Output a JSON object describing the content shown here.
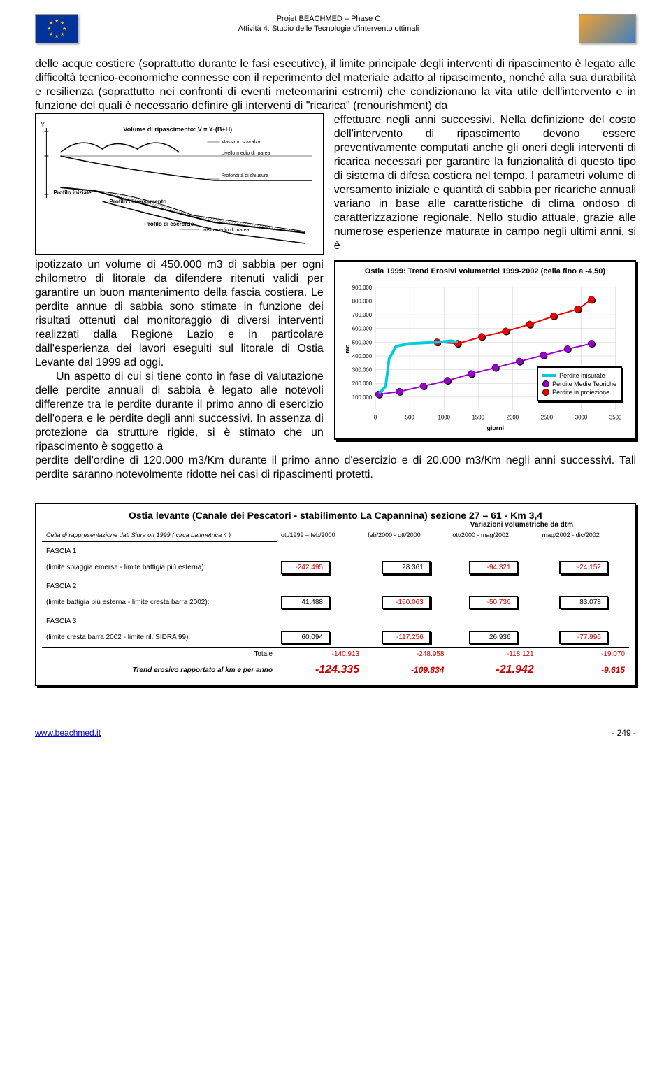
{
  "header": {
    "line1": "Projet BEACHMED – Phase C",
    "line2": "Attività 4: Studio delle Tecnologie d'intervento ottimali"
  },
  "body": {
    "para_top": "delle acque costiere (soprattutto durante le fasi esecutive), il limite principale degli interventi di ripascimento è legato alle difficoltà tecnico-economiche connesse con il reperimento del materiale adatto al ripascimento, nonché alla sua durabilità e resilienza (soprattutto nei confronti di eventi meteomarini estremi) che condizionano la vita utile dell'intervento e in funzione dei quali è necessario definire gli interventi di \"ricarica\" (renourishment) da",
    "para_right": "effettuare negli anni successivi. Nella definizione del costo dell'intervento di ripascimento devono essere preventivamente computati anche gli oneri degli interventi di ricarica necessari per garantire la funzionalità di questo tipo di sistema di difesa costiera nel tempo. I parametri volume di versamento iniziale e quantità di sabbia per ricariche annuali variano in base alle caratteristiche di clima ondoso di caratterizzazione regionale. Nello studio attuale, grazie alle numerose esperienze maturate in campo negli ultimi anni, si è",
    "para_left": "ipotizzato un volume di 450.000 m3 di sabbia per ogni chilometro di litorale da difendere ritenuti validi per garantire un buon mantenimento della fascia costiera. Le perdite annue di sabbia sono stimate in funzione dei risultati ottenuti dal monitoraggio di diversi interventi realizzati dalla Regione Lazio e in particolare dall'esperienza dei lavori eseguiti sul litorale di Ostia Levante dal 1999 ad oggi.",
    "para_left2": "Un aspetto di cui si tiene conto in fase di valutazione delle perdite annuali di sabbia è legato alle notevoli differenze tra le perdite durante il primo anno di esercizio dell'opera e le perdite degli anni successivi. In assenza di protezione da strutture rigide, si è stimato che un ripascimento è soggetto a",
    "para_bottom": "perdite dell'ordine di 120.000 m3/Km durante il primo anno d'esercizio e di 20.000 m3/Km negli anni successivi. Tali perdite saranno notevolmente ridotte nei casi di ripascimenti protetti."
  },
  "diagram_labels": {
    "formula": "Volume di ripascimento: V = Y·(B+H)",
    "max_sov": "Massimo sovralzo",
    "liv_marea": "Livello medio di marea",
    "prof_chiusura": "Profondità di chiusura",
    "profilo_iniziale": "Profilo iniziale",
    "profilo_versamento": "Profilo di versamento",
    "profilo_esercizio": "Profilo di esercizio"
  },
  "chart": {
    "title": "Ostia 1999: Trend Erosivi volumetrici 1999-2002 (cella fino a -4,50)",
    "ylabel": "mc",
    "xlabel": "giorni",
    "xlim": [
      0,
      3500
    ],
    "xtick_step": 500,
    "ylim": [
      0,
      900000
    ],
    "ytick_step": 100000,
    "yticks": [
      "100.000",
      "200.000",
      "300.000",
      "400.000",
      "500.000",
      "600.000",
      "700.000",
      "800.000",
      "900.000"
    ],
    "series": {
      "misurate": {
        "label": "Perdite misurate",
        "color": "#00ccdd",
        "line_width": 4,
        "points": [
          [
            50,
            130000
          ],
          [
            100,
            150000
          ],
          [
            150,
            180000
          ],
          [
            200,
            380000
          ],
          [
            300,
            470000
          ],
          [
            500,
            490000
          ],
          [
            900,
            500000
          ],
          [
            1100,
            510000
          ],
          [
            1200,
            500000
          ]
        ]
      },
      "teoriche": {
        "label": "Perdite Medie Teoriche",
        "color": "#9900cc",
        "marker": "circle",
        "line_width": 2,
        "points": [
          [
            50,
            120000
          ],
          [
            350,
            140000
          ],
          [
            700,
            180000
          ],
          [
            1050,
            220000
          ],
          [
            1400,
            270000
          ],
          [
            1750,
            315000
          ],
          [
            2100,
            360000
          ],
          [
            2450,
            405000
          ],
          [
            2800,
            450000
          ],
          [
            3150,
            490000
          ]
        ]
      },
      "proiezione": {
        "label": "Perdite in proiezione",
        "color": "#ee0000",
        "marker": "circle",
        "line_width": 2,
        "points": [
          [
            900,
            500000
          ],
          [
            1200,
            490000
          ],
          [
            1550,
            540000
          ],
          [
            1900,
            580000
          ],
          [
            2250,
            630000
          ],
          [
            2600,
            690000
          ],
          [
            2950,
            740000
          ],
          [
            3150,
            810000
          ]
        ]
      }
    },
    "legend_position": "bottom-right"
  },
  "table": {
    "title": "Ostia levante (Canale dei Pescatori - stabilimento La Capannina) sezione 27 – 61 - Km 3,4",
    "subtitle": "Variazioni volumetriche da dtm",
    "cella_label": "Cella di rappresentazione dati Sidra ott 1999 ( circa batimetrica 4 )",
    "col_headers": [
      "ott/1999 – feb/2000",
      "feb/2000 - ott/2000",
      "ott/2000 - mag/2002",
      "mag/2002 - dic/2002"
    ],
    "fascia1": {
      "label": "FASCIA 1",
      "desc": "(limite spiaggia emersa - limite battigia più esterna):",
      "vals": [
        "-242.495",
        "28.361",
        "-94.321",
        "-24.152"
      ],
      "neg": [
        true,
        false,
        true,
        true
      ]
    },
    "fascia2": {
      "label": "FASCIA 2",
      "desc": "(limite battigia più esterna - limite cresta barra 2002):",
      "vals": [
        "41.488",
        "-160.063",
        "-50.736",
        "83.078"
      ],
      "neg": [
        false,
        true,
        true,
        false
      ]
    },
    "fascia3": {
      "label": "FASCIA 3",
      "desc": "(limite cresta barra 2002 - limite ril. SIDRA 99):",
      "vals": [
        "60.094",
        "-117.256",
        "26.936",
        "-77.996"
      ],
      "neg": [
        false,
        true,
        false,
        true
      ]
    },
    "totale": {
      "label": "Totale",
      "vals": [
        "-140.913",
        "-248.958",
        "-118.121",
        "-19.070"
      ]
    },
    "trend": {
      "label": "Trend erosivo rapportato al km e per anno",
      "vals": [
        "-124.335",
        "-109.834",
        "-21.942",
        "-9.615"
      ],
      "big": [
        true,
        false,
        true,
        false
      ]
    }
  },
  "footer": {
    "url": "www.beachmed.it",
    "page": "- 249 -"
  }
}
